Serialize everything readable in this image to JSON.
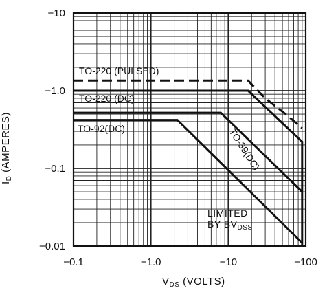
{
  "chart_data": {
    "type": "line",
    "xscale": "log",
    "yscale": "log",
    "xlim": [
      -0.1,
      -100
    ],
    "ylim": [
      -0.01,
      -10
    ],
    "grid": true,
    "xlabel": "VDS (VOLTS)",
    "ylabel": "ID (AMPERES)",
    "xlabel_main": "V",
    "xlabel_sub": "DS",
    "xlabel_rest": " (VOLTS)",
    "ylabel_main": "I",
    "ylabel_sub": "D",
    "ylabel_rest": " (AMPERES)",
    "xticks": [
      "−0.1",
      "−1.0",
      "−10",
      "−100"
    ],
    "yticks": [
      "−0.01",
      "−0.1",
      "−1.0",
      "−10"
    ],
    "series": [
      {
        "name": "TO-220 (PULSED)",
        "dashed": true,
        "x": [
          -0.1,
          -18,
          -30,
          -55,
          -90
        ],
        "y": [
          -1.35,
          -1.35,
          -0.8,
          -0.5,
          -0.33
        ]
      },
      {
        "name": "TO-220 (DC)",
        "dashed": false,
        "x": [
          -0.1,
          -18,
          -90,
          -90
        ],
        "y": [
          -1.0,
          -1.0,
          -0.22,
          -0.01
        ]
      },
      {
        "name": "TO-39(DC)",
        "dashed": false,
        "x": [
          -0.1,
          -8,
          -90
        ],
        "y": [
          -0.52,
          -0.52,
          -0.05
        ]
      },
      {
        "name": "TO-92(DC)",
        "dashed": false,
        "x": [
          -0.1,
          -2.2,
          -90
        ],
        "y": [
          -0.42,
          -0.42,
          -0.011
        ]
      }
    ],
    "annotation": {
      "line1": "LIMITED",
      "line2_main": "BY BV",
      "line2_sub": "DSS"
    }
  }
}
